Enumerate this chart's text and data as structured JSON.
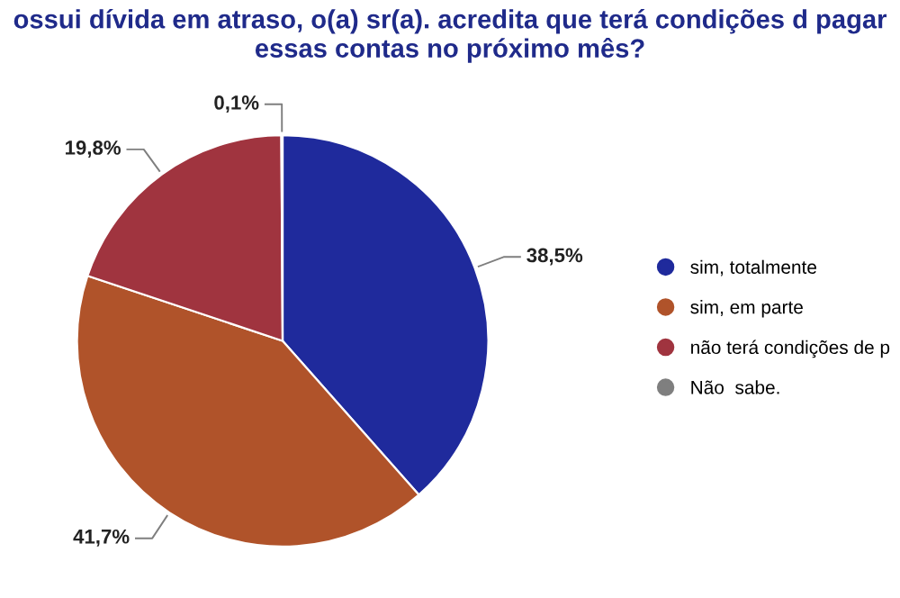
{
  "chart_data": {
    "type": "pie",
    "title": "ossui dívida em atraso, o(a) sr(a). acredita que terá condições d pagar essas contas no próximo mês?",
    "categories": [
      "sim, totalmente",
      "sim, em parte",
      "não terá condições de p",
      "Não  sabe."
    ],
    "values": [
      38.5,
      41.7,
      19.8,
      0.1
    ],
    "colors": [
      "#1f2a9c",
      "#b0532a",
      "#a0343f",
      "#7f7f7f"
    ],
    "value_labels": [
      "38,5%",
      "41,7%",
      "19,8%",
      "0,1%"
    ],
    "legend": "right"
  }
}
